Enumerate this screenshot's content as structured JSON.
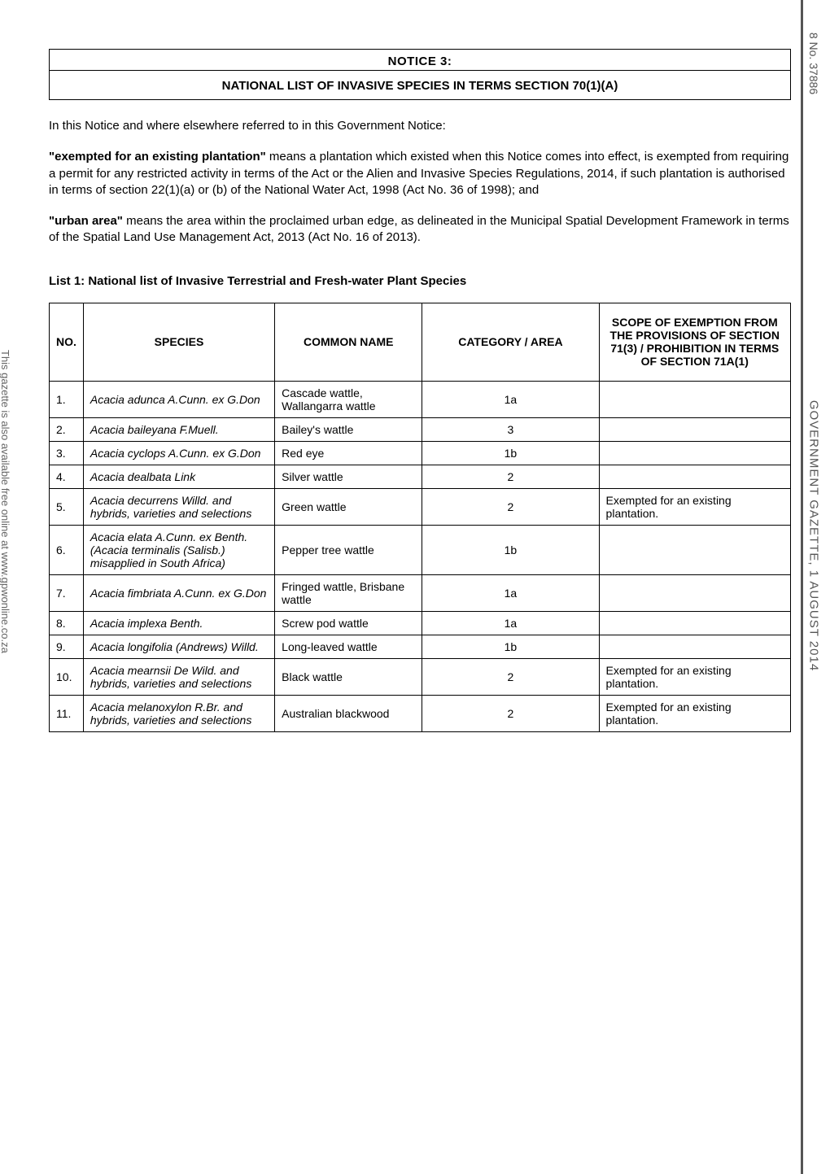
{
  "sidebar_right": {
    "page_ref": "8   No. 37886",
    "gazette": "GOVERNMENT GAZETTE, 1 AUGUST 2014"
  },
  "sidebar_left": "This gazette is also available free online at www.gpwonline.co.za",
  "notice_box": {
    "line1": "NOTICE 3:",
    "line2": "NATIONAL LIST OF INVASIVE SPECIES IN TERMS SECTION 70(1)(A)"
  },
  "intro": "In this Notice and where elsewhere referred to in this Government Notice:",
  "def1_bold": "\"exempted for an existing plantation\"",
  "def1_rest": " means a plantation which existed when this Notice comes into effect, is exempted from requiring a permit for any restricted activity in terms of the Act or the Alien and Invasive Species Regulations, 2014, if such plantation is authorised in terms of section 22(1)(a) or (b) of the National Water Act, 1998 (Act No. 36 of 1998); and",
  "def2_bold": "\"urban area\"",
  "def2_rest": " means the area within the proclaimed urban edge, as delineated in the Municipal Spatial Development Framework in terms of the Spatial Land Use Management Act, 2013 (Act No. 16 of 2013).",
  "list_title": "List 1: National list of Invasive Terrestrial and Fresh-water Plant Species",
  "headers": {
    "no": "NO.",
    "species": "SPECIES",
    "common": "COMMON NAME",
    "category": "CATEGORY / AREA",
    "scope": "SCOPE OF EXEMPTION FROM THE PROVISIONS OF SECTION 71(3) / PROHIBITION IN TERMS OF SECTION 71A(1)"
  },
  "rows": [
    {
      "n": "1.",
      "s": "Acacia adunca A.Cunn. ex G.Don",
      "c": "Cascade wattle, Wallangarra wattle",
      "cat": "1a",
      "sc": ""
    },
    {
      "n": "2.",
      "s": "Acacia baileyana F.Muell.",
      "c": "Bailey's wattle",
      "cat": "3",
      "sc": ""
    },
    {
      "n": "3.",
      "s": "Acacia cyclops A.Cunn. ex G.Don",
      "c": "Red eye",
      "cat": "1b",
      "sc": ""
    },
    {
      "n": "4.",
      "s": "Acacia dealbata Link",
      "c": "Silver wattle",
      "cat": "2",
      "sc": ""
    },
    {
      "n": "5.",
      "s": "Acacia decurrens Willd. and hybrids, varieties and selections",
      "c": "Green wattle",
      "cat": "2",
      "sc": "Exempted for an existing plantation."
    },
    {
      "n": "6.",
      "s": "Acacia elata A.Cunn. ex Benth. (Acacia terminalis (Salisb.) misapplied in South Africa)",
      "c": "Pepper tree wattle",
      "cat": "1b",
      "sc": ""
    },
    {
      "n": "7.",
      "s": "Acacia fimbriata A.Cunn. ex G.Don",
      "c": "Fringed wattle, Brisbane wattle",
      "cat": "1a",
      "sc": ""
    },
    {
      "n": "8.",
      "s": "Acacia implexa Benth.",
      "c": "Screw pod wattle",
      "cat": "1a",
      "sc": ""
    },
    {
      "n": "9.",
      "s": "Acacia longifolia (Andrews) Willd.",
      "c": "Long-leaved wattle",
      "cat": "1b",
      "sc": ""
    },
    {
      "n": "10.",
      "s": "Acacia mearnsii De Wild. and hybrids, varieties and selections",
      "c": "Black wattle",
      "cat": "2",
      "sc": "Exempted for an existing plantation."
    },
    {
      "n": "11.",
      "s": "Acacia melanoxylon R.Br. and hybrids, varieties and selections",
      "c": "Australian blackwood",
      "cat": "2",
      "sc": "Exempted for an existing plantation."
    }
  ]
}
